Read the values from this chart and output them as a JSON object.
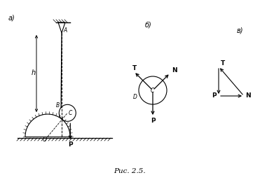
{
  "title": "Рис. 2.5.",
  "bg_color": "#ffffff",
  "line_color": "#000000",
  "label_a": "а)",
  "label_b": "б)",
  "label_v": "в)"
}
